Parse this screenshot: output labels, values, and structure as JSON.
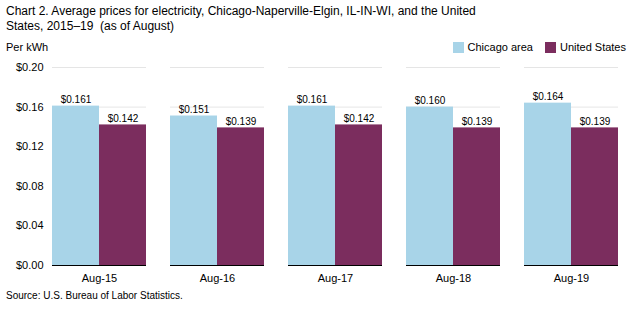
{
  "chart_data": {
    "type": "bar",
    "title": "Chart 2. Average prices for electricity, Chicago-Naperville-Elgin, IL-IN-WI, and the United\nStates, 2015–19  (as of August)",
    "ylabel": "Per kWh",
    "source": "Source: U.S. Bureau of Labor Statistics.",
    "categories": [
      "Aug-15",
      "Aug-16",
      "Aug-17",
      "Aug-18",
      "Aug-19"
    ],
    "series": [
      {
        "name": "Chicago area",
        "color": "#A8D4E8",
        "values": [
          0.161,
          0.151,
          0.161,
          0.16,
          0.164
        ],
        "value_labels": [
          "$0.161",
          "$0.151",
          "$0.161",
          "$0.160",
          "$0.164"
        ]
      },
      {
        "name": "United States",
        "color": "#7B2D5E",
        "values": [
          0.142,
          0.139,
          0.142,
          0.139,
          0.139
        ],
        "value_labels": [
          "$0.142",
          "$0.139",
          "$0.142",
          "$0.139",
          "$0.139"
        ]
      }
    ],
    "ylim": [
      0.0,
      0.2
    ],
    "yticks": [
      {
        "value": 0.0,
        "label": "$0.00"
      },
      {
        "value": 0.04,
        "label": "$0.04"
      },
      {
        "value": 0.08,
        "label": "$0.08"
      },
      {
        "value": 0.12,
        "label": "$0.12"
      },
      {
        "value": 0.16,
        "label": "$0.16"
      },
      {
        "value": 0.2,
        "label": "$0.20"
      }
    ],
    "grid": true,
    "legend": "top right",
    "data_labels": true
  }
}
